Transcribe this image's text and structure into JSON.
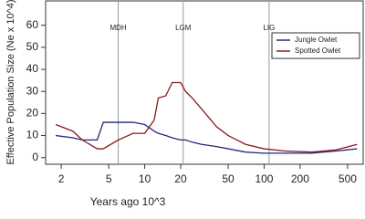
{
  "chart_data": {
    "type": "line",
    "x_label": "Years ago 10^3",
    "y_label": "Effective Population Size (Ne x 10^4)",
    "x_log": true,
    "x": [
      1.8,
      2.5,
      3,
      4,
      4.5,
      6,
      8,
      10,
      12,
      13,
      15,
      17,
      20,
      22,
      25,
      30,
      40,
      50,
      70,
      100,
      150,
      250,
      400,
      600
    ],
    "series": [
      {
        "name": "Jungle Owlet",
        "color": "#1f2a7a",
        "values": [
          10,
          9,
          8,
          8,
          16,
          16,
          16,
          15,
          12,
          11,
          10,
          9,
          8,
          8,
          7,
          6,
          5,
          4,
          2.5,
          2,
          2,
          2,
          3,
          4
        ]
      },
      {
        "name": "Spotted Owlet",
        "color": "#8b1a1a",
        "values": [
          15,
          12,
          8,
          4,
          4,
          8,
          11,
          11,
          17,
          27,
          28,
          34,
          34,
          30,
          27,
          22,
          14,
          10,
          6,
          4,
          3,
          2.5,
          3.5,
          6
        ]
      }
    ],
    "events": [
      {
        "label": "MDH",
        "x": 6
      },
      {
        "label": "LGM",
        "x": 21
      },
      {
        "label": "LIG",
        "x": 110
      }
    ],
    "xlim": [
      1.48,
      675
    ],
    "xticks": [
      2,
      5,
      10,
      20,
      50,
      100,
      200,
      500
    ],
    "ylim": [
      -3,
      71
    ],
    "yticks": [
      0,
      10,
      20,
      30,
      40,
      50,
      60
    ],
    "legend": "top-right"
  }
}
